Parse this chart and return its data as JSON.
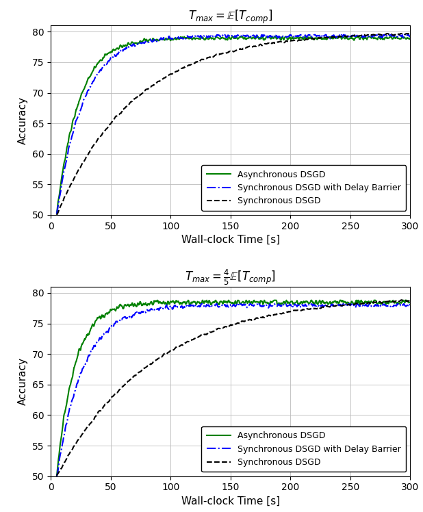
{
  "title1": "$T_{max} = \\mathbb{E}[T_{comp}]$",
  "title2": "$T_{max} = \\frac{4}{5}\\mathbb{E}[T_{comp}]$",
  "xlabel": "Wall-clock Time [s]",
  "ylabel": "Accuracy",
  "xlim": [
    0,
    300
  ],
  "ylim": [
    50,
    81
  ],
  "yticks": [
    50,
    55,
    60,
    65,
    70,
    75,
    80
  ],
  "xticks": [
    0,
    50,
    100,
    150,
    200,
    250,
    300
  ],
  "legend_labels": [
    "Asynchronous DSGD",
    "Synchronous DSGD with Delay Barrier",
    "Synchronous DSGD"
  ],
  "colors": [
    "#008000",
    "#0000FF",
    "#000000"
  ],
  "linestyles": [
    "-",
    "-.",
    "--"
  ],
  "linewidths": [
    1.5,
    1.5,
    1.5
  ],
  "figsize": [
    6.18,
    7.48
  ],
  "dpi": 100
}
